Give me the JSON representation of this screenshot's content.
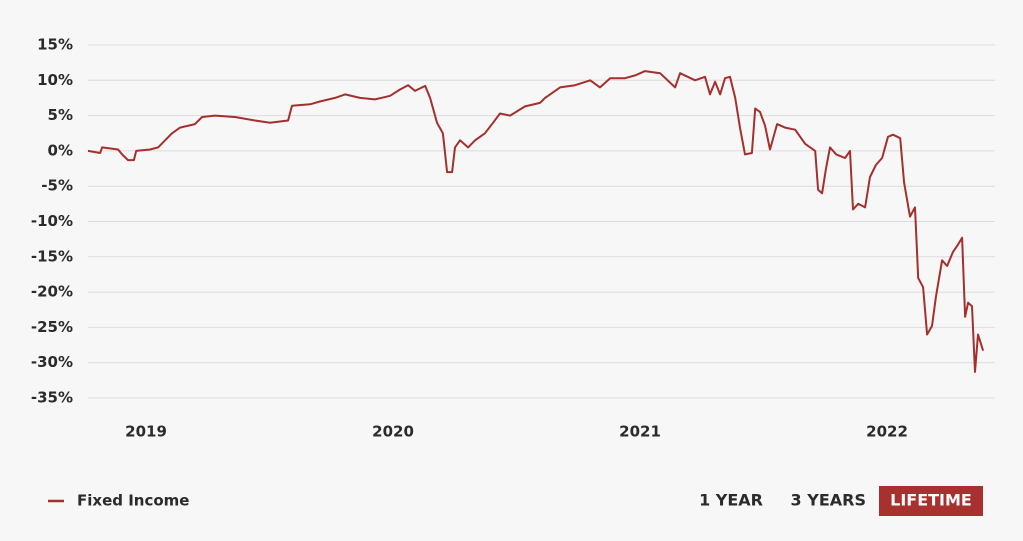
{
  "chart_data": {
    "type": "line",
    "series": [
      {
        "name": "Fixed Income",
        "color": "#a4302d",
        "x": [
          2018.765,
          2018.814,
          2018.822,
          2018.887,
          2018.903,
          2018.927,
          2018.951,
          2018.96,
          2019.016,
          2019.049,
          2019.077,
          2019.105,
          2019.138,
          2019.198,
          2019.227,
          2019.279,
          2019.36,
          2019.441,
          2019.502,
          2019.575,
          2019.591,
          2019.664,
          2019.704,
          2019.765,
          2019.806,
          2019.866,
          2019.927,
          2019.988,
          2020.028,
          2020.061,
          2020.089,
          2020.13,
          2020.15,
          2020.178,
          2020.202,
          2020.219,
          2020.239,
          2020.251,
          2020.271,
          2020.304,
          2020.332,
          2020.372,
          2020.405,
          2020.433,
          2020.474,
          2020.534,
          2020.595,
          2020.615,
          2020.636,
          2020.676,
          2020.737,
          2020.798,
          2020.838,
          2020.879,
          2020.939,
          2020.98,
          2021.02,
          2021.081,
          2021.142,
          2021.162,
          2021.223,
          2021.263,
          2021.283,
          2021.304,
          2021.324,
          2021.344,
          2021.364,
          2021.385,
          2021.405,
          2021.425,
          2021.453,
          2021.466,
          2021.486,
          2021.506,
          2021.526,
          2021.555,
          2021.587,
          2021.628,
          2021.668,
          2021.709,
          2021.721,
          2021.737,
          2021.753,
          2021.769,
          2021.794,
          2021.83,
          2021.85,
          2021.862,
          2021.883,
          2021.911,
          2021.931,
          2021.955,
          2021.98,
          2022.004,
          2022.024,
          2022.053,
          2022.069,
          2022.093,
          2022.113,
          2022.126,
          2022.146,
          2022.162,
          2022.182,
          2022.198,
          2022.223,
          2022.243,
          2022.267,
          2022.287,
          2022.304,
          2022.316,
          2022.328,
          2022.344,
          2022.356,
          2022.368,
          2022.389
        ],
        "values": [
          0,
          -0.3,
          0.5,
          0.2,
          -0.5,
          -1.3,
          -1.3,
          0,
          0.2,
          0.5,
          1.5,
          2.5,
          3.3,
          3.8,
          4.8,
          5,
          4.8,
          4.3,
          4,
          4.3,
          6.4,
          6.6,
          7,
          7.5,
          8,
          7.5,
          7.3,
          7.8,
          8.7,
          9.3,
          8.5,
          9.2,
          7.5,
          4,
          2.5,
          -3,
          -3,
          0.5,
          1.5,
          0.5,
          1.5,
          2.5,
          4,
          5.3,
          5,
          6.3,
          6.8,
          7.5,
          8,
          9,
          9.3,
          10,
          9,
          10.3,
          10.3,
          10.7,
          11.3,
          11,
          9,
          11,
          10,
          10.5,
          8,
          9.8,
          8,
          10.3,
          10.5,
          7.5,
          3.2,
          -0.5,
          -0.3,
          6,
          5.5,
          3.6,
          0.2,
          3.8,
          3.3,
          3,
          1,
          0,
          -5.5,
          -6,
          -2.5,
          0.5,
          -0.5,
          -1,
          0,
          -8.3,
          -7.5,
          -8,
          -3.7,
          -2,
          -1,
          2,
          2.3,
          1.8,
          -4.5,
          -9.3,
          -8,
          -18,
          -19.3,
          -26,
          -24.8,
          -20.6,
          -15.5,
          -16.3,
          -14.3,
          -13.3,
          -12.3,
          -23.5,
          -21.5,
          -22,
          -31.3,
          -26,
          -28.3
        ]
      }
    ],
    "xlim": [
      2018.765,
      2022.437
    ],
    "xticks": [
      2019,
      2020,
      2021,
      2022
    ],
    "ylim": [
      -35,
      15
    ],
    "yticks": [
      {
        "value": 15,
        "label": "15%"
      },
      {
        "value": 10,
        "label": "10%"
      },
      {
        "value": 5,
        "label": "5%"
      },
      {
        "value": 0,
        "label": "0%"
      },
      {
        "value": -5,
        "label": "-5%"
      },
      {
        "value": -10,
        "label": "-10%"
      },
      {
        "value": -15,
        "label": "-15%"
      },
      {
        "value": -20,
        "label": "-20%"
      },
      {
        "value": -25,
        "label": "-25%"
      },
      {
        "value": -30,
        "label": "-30%"
      },
      {
        "value": -35,
        "label": "-35%"
      }
    ],
    "grid": true,
    "range_buttons": [
      "1 YEAR",
      "3 YEARS",
      "LIFETIME"
    ],
    "selected_range": 2
  }
}
